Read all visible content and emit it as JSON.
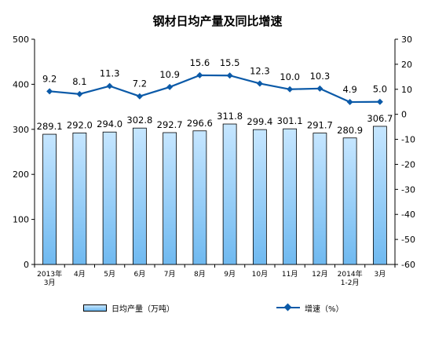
{
  "title": "钢材日均产量及同比增速",
  "legend": {
    "bar_label": "日均产量（万吨）",
    "line_label": "增速（%）"
  },
  "colors": {
    "bar_fill_top": "#c6e6ff",
    "bar_fill_bottom": "#6fb9f0",
    "line": "#0b5aa8"
  },
  "chart_data": {
    "type": "bar",
    "categories": [
      [
        "2013年",
        "3月"
      ],
      [
        "4月"
      ],
      [
        "5月"
      ],
      [
        "6月"
      ],
      [
        "7月"
      ],
      [
        "8月"
      ],
      [
        "9月"
      ],
      [
        "10月"
      ],
      [
        "11月"
      ],
      [
        "12月"
      ],
      [
        "2014年",
        "1-2月"
      ],
      [
        "3月"
      ]
    ],
    "series": [
      {
        "name": "日均产量（万吨）",
        "type": "bar",
        "axis": "left",
        "values": [
          289.1,
          292.0,
          294.0,
          302.8,
          292.7,
          296.6,
          311.8,
          299.4,
          301.1,
          291.7,
          280.9,
          306.7
        ],
        "labels": [
          "289.1",
          "292.0",
          "294.0",
          "302.8",
          "292.7",
          "296.6",
          "311.8",
          "299.4",
          "301.1",
          "291.7",
          "280.9",
          "306.7"
        ]
      },
      {
        "name": "增速（%）",
        "type": "line",
        "axis": "right",
        "values": [
          9.2,
          8.1,
          11.3,
          7.2,
          10.9,
          15.6,
          15.5,
          12.3,
          10.0,
          10.3,
          4.9,
          5.0
        ],
        "labels": [
          "9.2",
          "8.1",
          "11.3",
          "7.2",
          "10.9",
          "15.6",
          "15.5",
          "12.3",
          "10.0",
          "10.3",
          "4.9",
          "5.0"
        ]
      }
    ],
    "y_left": {
      "min": 0,
      "max": 500,
      "ticks": [
        "0",
        "100",
        "200",
        "300",
        "400",
        "500"
      ]
    },
    "y_right": {
      "min": -60,
      "max": 30,
      "ticks": [
        "-60",
        "-50",
        "-40",
        "-30",
        "-20",
        "-10",
        "0",
        "10",
        "20",
        "30"
      ]
    },
    "grid": false,
    "legend_position": "bottom"
  }
}
